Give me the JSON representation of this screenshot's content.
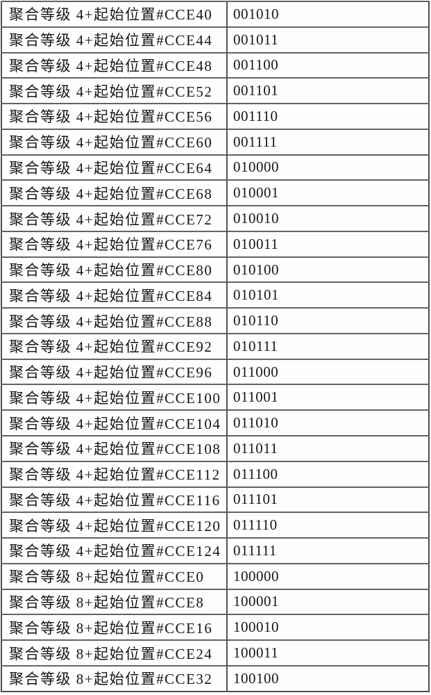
{
  "table": {
    "rows": [
      {
        "label": "聚合等级 4+起始位置#CCE40",
        "value": "001010"
      },
      {
        "label": "聚合等级 4+起始位置#CCE44",
        "value": "001011"
      },
      {
        "label": "聚合等级 4+起始位置#CCE48",
        "value": "001100"
      },
      {
        "label": "聚合等级 4+起始位置#CCE52",
        "value": "001101"
      },
      {
        "label": "聚合等级 4+起始位置#CCE56",
        "value": "001110"
      },
      {
        "label": "聚合等级 4+起始位置#CCE60",
        "value": "001111"
      },
      {
        "label": "聚合等级 4+起始位置#CCE64",
        "value": "010000"
      },
      {
        "label": "聚合等级 4+起始位置#CCE68",
        "value": "010001"
      },
      {
        "label": "聚合等级 4+起始位置#CCE72",
        "value": "010010"
      },
      {
        "label": "聚合等级 4+起始位置#CCE76",
        "value": "010011"
      },
      {
        "label": "聚合等级 4+起始位置#CCE80",
        "value": "010100"
      },
      {
        "label": "聚合等级 4+起始位置#CCE84",
        "value": "010101"
      },
      {
        "label": "聚合等级 4+起始位置#CCE88",
        "value": "010110"
      },
      {
        "label": "聚合等级 4+起始位置#CCE92",
        "value": "010111"
      },
      {
        "label": "聚合等级 4+起始位置#CCE96",
        "value": "011000"
      },
      {
        "label": "聚合等级 4+起始位置#CCE100",
        "value": "011001"
      },
      {
        "label": "聚合等级 4+起始位置#CCE104",
        "value": "011010"
      },
      {
        "label": "聚合等级 4+起始位置#CCE108",
        "value": "011011"
      },
      {
        "label": "聚合等级 4+起始位置#CCE112",
        "value": "011100"
      },
      {
        "label": "聚合等级 4+起始位置#CCE116",
        "value": "011101"
      },
      {
        "label": "聚合等级 4+起始位置#CCE120",
        "value": "011110"
      },
      {
        "label": "聚合等级 4+起始位置#CCE124",
        "value": "011111"
      },
      {
        "label": "聚合等级 8+起始位置#CCE0",
        "value": "100000"
      },
      {
        "label": "聚合等级 8+起始位置#CCE8",
        "value": "100001"
      },
      {
        "label": "聚合等级 8+起始位置#CCE16",
        "value": "100010"
      },
      {
        "label": "聚合等级 8+起始位置#CCE24",
        "value": "100011"
      },
      {
        "label": "聚合等级 8+起始位置#CCE32",
        "value": "100100"
      }
    ]
  }
}
